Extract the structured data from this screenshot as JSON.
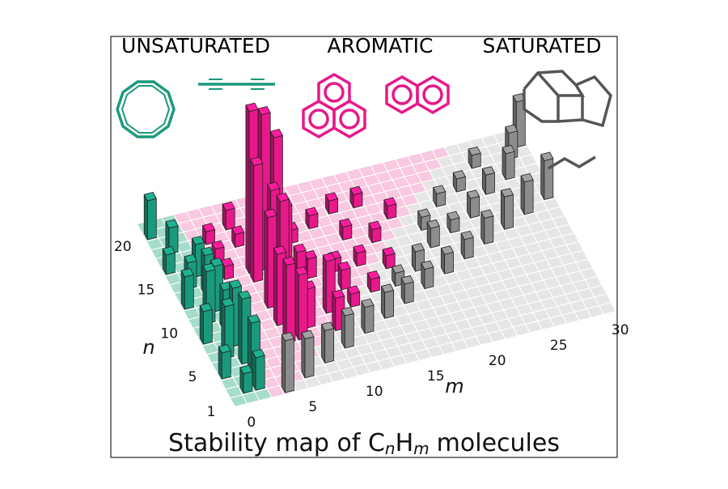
{
  "chart_data": {
    "type": "bar3d",
    "title": {
      "prefix": "Stability map of C",
      "sub1": "n",
      "mid": "H",
      "sub2": "m",
      "suffix": "molecules"
    },
    "xlabel": "m",
    "ylabel": "n",
    "xlim": [
      0,
      30
    ],
    "ylim": [
      1,
      21
    ],
    "xticks": [
      0,
      5,
      10,
      15,
      20,
      25,
      30
    ],
    "yticks": [
      1,
      5,
      10,
      15,
      20
    ],
    "series": [
      {
        "name": "UNSATURATED",
        "color": "#1a9a7c",
        "m": [
          0,
          1,
          0,
          2,
          1,
          2,
          0,
          2,
          1,
          2,
          0,
          2,
          1,
          2,
          0,
          2,
          1,
          2
        ],
        "n": [
          20,
          18,
          16,
          15,
          14,
          13,
          12,
          11,
          10,
          9,
          8,
          7,
          6,
          5,
          4,
          3,
          2,
          2
        ],
        "values": [
          6,
          4,
          3,
          5,
          4,
          6,
          5,
          7,
          8,
          6,
          5,
          9,
          8,
          10,
          4,
          9,
          3,
          5
        ]
      },
      {
        "name": "AROMATIC",
        "color": "#e8188a",
        "m": [
          6,
          7,
          8,
          6,
          7,
          8,
          6,
          7,
          6,
          8,
          6,
          7,
          8,
          10,
          10,
          12,
          10,
          12,
          14,
          14,
          16,
          12,
          14,
          16,
          18,
          10,
          4,
          4,
          6,
          4,
          12,
          14,
          16,
          6,
          8
        ],
        "n": [
          14,
          14,
          14,
          13,
          12,
          12,
          10,
          10,
          8,
          9,
          6,
          6,
          7,
          8,
          6,
          10,
          16,
          17,
          18,
          15,
          18,
          12,
          12,
          14,
          16,
          12,
          16,
          18,
          17,
          14,
          8,
          9,
          11,
          19,
          19
        ],
        "values": [
          25,
          24,
          20,
          18,
          15,
          12,
          14,
          16,
          11,
          9,
          12,
          10,
          6,
          8,
          5,
          3,
          2,
          2,
          2,
          2,
          2,
          2,
          2,
          2,
          2,
          3,
          2,
          2,
          2,
          2,
          2,
          2,
          2,
          3,
          3
        ]
      },
      {
        "name": "SATURATED",
        "color": "#8c8c8c",
        "m": [
          4,
          6,
          8,
          10,
          12,
          14,
          16,
          18,
          20,
          22,
          24,
          26,
          28,
          30,
          16,
          18,
          20,
          22,
          24,
          26,
          28,
          30,
          29,
          20,
          22,
          24,
          26
        ],
        "n": [
          1,
          2,
          3,
          4,
          5,
          6,
          7,
          8,
          9,
          10,
          11,
          12,
          13,
          14,
          9,
          10,
          12,
          13,
          14,
          16,
          17,
          20,
          19,
          14,
          16,
          17,
          19
        ],
        "values": [
          8,
          6,
          5,
          5,
          4,
          4,
          3,
          3,
          3,
          3,
          4,
          5,
          5,
          6,
          2,
          3,
          3,
          2,
          3,
          3,
          4,
          7,
          4,
          2,
          2,
          2,
          2
        ]
      }
    ]
  }
}
